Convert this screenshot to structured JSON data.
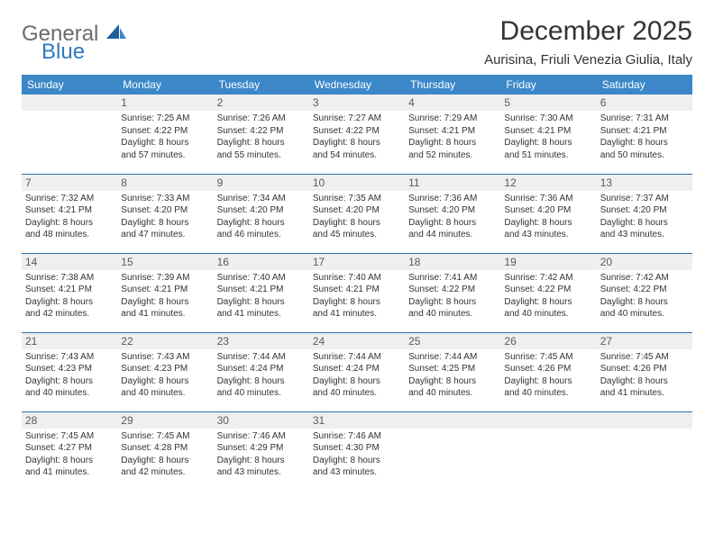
{
  "logo": {
    "word1": "General",
    "word2": "Blue"
  },
  "title": "December 2025",
  "location": "Aurisina, Friuli Venezia Giulia, Italy",
  "colors": {
    "header_bg": "#3b87c8",
    "row_divider": "#2f6fa8",
    "daynum_bg": "#efefef",
    "logo_gray": "#6b6b6b",
    "logo_blue": "#2f78bf"
  },
  "weekdays": [
    "Sunday",
    "Monday",
    "Tuesday",
    "Wednesday",
    "Thursday",
    "Friday",
    "Saturday"
  ],
  "weeks": [
    [
      null,
      {
        "n": "1",
        "sunrise": "Sunrise: 7:25 AM",
        "sunset": "Sunset: 4:22 PM",
        "day1": "Daylight: 8 hours",
        "day2": "and 57 minutes."
      },
      {
        "n": "2",
        "sunrise": "Sunrise: 7:26 AM",
        "sunset": "Sunset: 4:22 PM",
        "day1": "Daylight: 8 hours",
        "day2": "and 55 minutes."
      },
      {
        "n": "3",
        "sunrise": "Sunrise: 7:27 AM",
        "sunset": "Sunset: 4:22 PM",
        "day1": "Daylight: 8 hours",
        "day2": "and 54 minutes."
      },
      {
        "n": "4",
        "sunrise": "Sunrise: 7:29 AM",
        "sunset": "Sunset: 4:21 PM",
        "day1": "Daylight: 8 hours",
        "day2": "and 52 minutes."
      },
      {
        "n": "5",
        "sunrise": "Sunrise: 7:30 AM",
        "sunset": "Sunset: 4:21 PM",
        "day1": "Daylight: 8 hours",
        "day2": "and 51 minutes."
      },
      {
        "n": "6",
        "sunrise": "Sunrise: 7:31 AM",
        "sunset": "Sunset: 4:21 PM",
        "day1": "Daylight: 8 hours",
        "day2": "and 50 minutes."
      }
    ],
    [
      {
        "n": "7",
        "sunrise": "Sunrise: 7:32 AM",
        "sunset": "Sunset: 4:21 PM",
        "day1": "Daylight: 8 hours",
        "day2": "and 48 minutes."
      },
      {
        "n": "8",
        "sunrise": "Sunrise: 7:33 AM",
        "sunset": "Sunset: 4:20 PM",
        "day1": "Daylight: 8 hours",
        "day2": "and 47 minutes."
      },
      {
        "n": "9",
        "sunrise": "Sunrise: 7:34 AM",
        "sunset": "Sunset: 4:20 PM",
        "day1": "Daylight: 8 hours",
        "day2": "and 46 minutes."
      },
      {
        "n": "10",
        "sunrise": "Sunrise: 7:35 AM",
        "sunset": "Sunset: 4:20 PM",
        "day1": "Daylight: 8 hours",
        "day2": "and 45 minutes."
      },
      {
        "n": "11",
        "sunrise": "Sunrise: 7:36 AM",
        "sunset": "Sunset: 4:20 PM",
        "day1": "Daylight: 8 hours",
        "day2": "and 44 minutes."
      },
      {
        "n": "12",
        "sunrise": "Sunrise: 7:36 AM",
        "sunset": "Sunset: 4:20 PM",
        "day1": "Daylight: 8 hours",
        "day2": "and 43 minutes."
      },
      {
        "n": "13",
        "sunrise": "Sunrise: 7:37 AM",
        "sunset": "Sunset: 4:20 PM",
        "day1": "Daylight: 8 hours",
        "day2": "and 43 minutes."
      }
    ],
    [
      {
        "n": "14",
        "sunrise": "Sunrise: 7:38 AM",
        "sunset": "Sunset: 4:21 PM",
        "day1": "Daylight: 8 hours",
        "day2": "and 42 minutes."
      },
      {
        "n": "15",
        "sunrise": "Sunrise: 7:39 AM",
        "sunset": "Sunset: 4:21 PM",
        "day1": "Daylight: 8 hours",
        "day2": "and 41 minutes."
      },
      {
        "n": "16",
        "sunrise": "Sunrise: 7:40 AM",
        "sunset": "Sunset: 4:21 PM",
        "day1": "Daylight: 8 hours",
        "day2": "and 41 minutes."
      },
      {
        "n": "17",
        "sunrise": "Sunrise: 7:40 AM",
        "sunset": "Sunset: 4:21 PM",
        "day1": "Daylight: 8 hours",
        "day2": "and 41 minutes."
      },
      {
        "n": "18",
        "sunrise": "Sunrise: 7:41 AM",
        "sunset": "Sunset: 4:22 PM",
        "day1": "Daylight: 8 hours",
        "day2": "and 40 minutes."
      },
      {
        "n": "19",
        "sunrise": "Sunrise: 7:42 AM",
        "sunset": "Sunset: 4:22 PM",
        "day1": "Daylight: 8 hours",
        "day2": "and 40 minutes."
      },
      {
        "n": "20",
        "sunrise": "Sunrise: 7:42 AM",
        "sunset": "Sunset: 4:22 PM",
        "day1": "Daylight: 8 hours",
        "day2": "and 40 minutes."
      }
    ],
    [
      {
        "n": "21",
        "sunrise": "Sunrise: 7:43 AM",
        "sunset": "Sunset: 4:23 PM",
        "day1": "Daylight: 8 hours",
        "day2": "and 40 minutes."
      },
      {
        "n": "22",
        "sunrise": "Sunrise: 7:43 AM",
        "sunset": "Sunset: 4:23 PM",
        "day1": "Daylight: 8 hours",
        "day2": "and 40 minutes."
      },
      {
        "n": "23",
        "sunrise": "Sunrise: 7:44 AM",
        "sunset": "Sunset: 4:24 PM",
        "day1": "Daylight: 8 hours",
        "day2": "and 40 minutes."
      },
      {
        "n": "24",
        "sunrise": "Sunrise: 7:44 AM",
        "sunset": "Sunset: 4:24 PM",
        "day1": "Daylight: 8 hours",
        "day2": "and 40 minutes."
      },
      {
        "n": "25",
        "sunrise": "Sunrise: 7:44 AM",
        "sunset": "Sunset: 4:25 PM",
        "day1": "Daylight: 8 hours",
        "day2": "and 40 minutes."
      },
      {
        "n": "26",
        "sunrise": "Sunrise: 7:45 AM",
        "sunset": "Sunset: 4:26 PM",
        "day1": "Daylight: 8 hours",
        "day2": "and 40 minutes."
      },
      {
        "n": "27",
        "sunrise": "Sunrise: 7:45 AM",
        "sunset": "Sunset: 4:26 PM",
        "day1": "Daylight: 8 hours",
        "day2": "and 41 minutes."
      }
    ],
    [
      {
        "n": "28",
        "sunrise": "Sunrise: 7:45 AM",
        "sunset": "Sunset: 4:27 PM",
        "day1": "Daylight: 8 hours",
        "day2": "and 41 minutes."
      },
      {
        "n": "29",
        "sunrise": "Sunrise: 7:45 AM",
        "sunset": "Sunset: 4:28 PM",
        "day1": "Daylight: 8 hours",
        "day2": "and 42 minutes."
      },
      {
        "n": "30",
        "sunrise": "Sunrise: 7:46 AM",
        "sunset": "Sunset: 4:29 PM",
        "day1": "Daylight: 8 hours",
        "day2": "and 43 minutes."
      },
      {
        "n": "31",
        "sunrise": "Sunrise: 7:46 AM",
        "sunset": "Sunset: 4:30 PM",
        "day1": "Daylight: 8 hours",
        "day2": "and 43 minutes."
      },
      null,
      null,
      null
    ]
  ]
}
